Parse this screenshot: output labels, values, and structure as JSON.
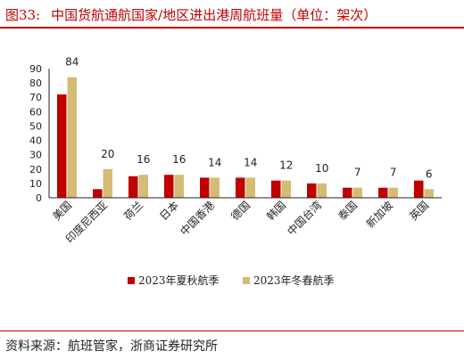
{
  "header": {
    "figure_number": "图33:",
    "title": "中国货航通航国家/地区进出港周航班量（单位：架次）"
  },
  "footer": {
    "source": "资料来源：航班管家，浙商证券研究所"
  },
  "colors": {
    "accent": "#c00000",
    "series_1": "#c00000",
    "series_2": "#d6bb75",
    "axis": "#222222"
  },
  "chart_data": {
    "type": "bar",
    "categories": [
      "美国",
      "印度尼西亚",
      "荷兰",
      "日本",
      "中国香港",
      "德国",
      "韩国",
      "中国台湾",
      "泰国",
      "新加坡",
      "英国"
    ],
    "series": [
      {
        "name": "2023年夏秋航季",
        "values": [
          72,
          6,
          15,
          16,
          14,
          14,
          12,
          10,
          7,
          7,
          12
        ]
      },
      {
        "name": "2023年冬春航季",
        "values": [
          84,
          20,
          16,
          16,
          14,
          14,
          12,
          10,
          7,
          7,
          6
        ]
      }
    ],
    "data_labels": [
      "84",
      "20",
      "16",
      "16",
      "14",
      "14",
      "12",
      "10",
      "7",
      "7",
      "6"
    ],
    "ylim": [
      0,
      90
    ],
    "yticks": [
      0,
      10,
      20,
      30,
      40,
      50,
      60,
      70,
      80,
      90
    ],
    "grid": false,
    "legend_position": "bottom"
  }
}
